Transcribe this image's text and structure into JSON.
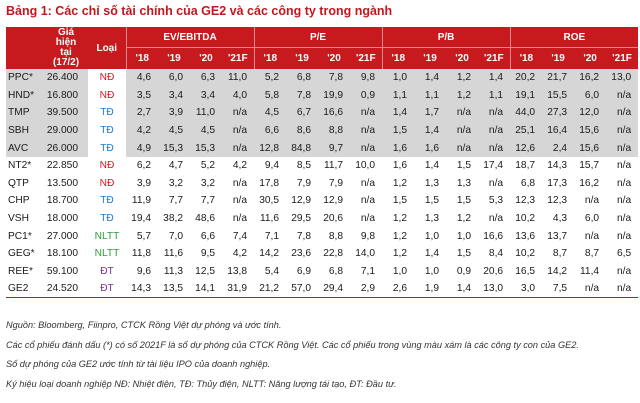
{
  "title": "Bảng 1: Các chỉ số tài chính của GE2 và các công ty trong ngành",
  "header": {
    "price_col": [
      "Giá",
      "hiện",
      "tại",
      "(17/2)"
    ],
    "type_col": "Loại",
    "groups": [
      "EV/EBITDA",
      "P/E",
      "P/B",
      "ROE"
    ],
    "years": [
      "'18",
      "'19",
      "'20",
      "'21F"
    ]
  },
  "colors": {
    "header_bg": "#c61a1f",
    "title": "#c4171d",
    "ND": "#d6191f",
    "TD": "#1f78c8",
    "NLTT": "#2e9e3a",
    "DT": "#7a2f9e",
    "grey_row": "#d6d6d6"
  },
  "rows": [
    {
      "code": "PPC*",
      "price": "26.400",
      "type": "NĐ",
      "ev": [
        "4,6",
        "6,0",
        "6,3",
        "11,0"
      ],
      "pe": [
        "5,2",
        "6,8",
        "7,8",
        "9,8"
      ],
      "pb": [
        "1,0",
        "1,4",
        "1,2",
        "1,4"
      ],
      "roe": [
        "20,2",
        "21,7",
        "16,2",
        "13,0"
      ],
      "grey": true
    },
    {
      "code": "HND*",
      "price": "16.800",
      "type": "NĐ",
      "ev": [
        "3,5",
        "3,4",
        "3,4",
        "4,0"
      ],
      "pe": [
        "5,8",
        "7,8",
        "19,9",
        "0,9"
      ],
      "pb": [
        "1,1",
        "1,1",
        "1,2",
        "1,1"
      ],
      "roe": [
        "19,1",
        "15,5",
        "6,0",
        "n/a"
      ],
      "grey": true
    },
    {
      "code": "TMP",
      "price": "39.500",
      "type": "TĐ",
      "ev": [
        "2,7",
        "3,9",
        "11,0",
        "n/a"
      ],
      "pe": [
        "4,5",
        "6,7",
        "16,6",
        "n/a"
      ],
      "pb": [
        "1,4",
        "1,7",
        "n/a",
        "n/a"
      ],
      "roe": [
        "44,0",
        "27,3",
        "12,0",
        "n/a"
      ],
      "grey": true
    },
    {
      "code": "SBH",
      "price": "29.000",
      "type": "TĐ",
      "ev": [
        "4,2",
        "4,5",
        "4,5",
        "n/a"
      ],
      "pe": [
        "6,6",
        "8,6",
        "8,8",
        "n/a"
      ],
      "pb": [
        "1,5",
        "1,4",
        "n/a",
        "n/a"
      ],
      "roe": [
        "25,1",
        "16,4",
        "15,6",
        "n/a"
      ],
      "grey": true
    },
    {
      "code": "AVC",
      "price": "26.000",
      "type": "TĐ",
      "ev": [
        "4,9",
        "15,3",
        "15,3",
        "n/a"
      ],
      "pe": [
        "12,8",
        "84,8",
        "9,7",
        "n/a"
      ],
      "pb": [
        "1,6",
        "1,6",
        "n/a",
        "n/a"
      ],
      "roe": [
        "12,6",
        "2,4",
        "15,6",
        "n/a"
      ],
      "grey": true
    },
    {
      "code": "NT2*",
      "price": "22.850",
      "type": "NĐ",
      "ev": [
        "6,2",
        "4,7",
        "5,2",
        "4,2"
      ],
      "pe": [
        "9,4",
        "8,5",
        "11,7",
        "10,0"
      ],
      "pb": [
        "1,6",
        "1,4",
        "1,5",
        "17,4"
      ],
      "roe": [
        "18,7",
        "14,3",
        "15,7",
        "n/a"
      ],
      "grey": false
    },
    {
      "code": "QTP",
      "price": "13.500",
      "type": "NĐ",
      "ev": [
        "3,9",
        "3,2",
        "3,2",
        "n/a"
      ],
      "pe": [
        "17,8",
        "7,9",
        "7,9",
        "n/a"
      ],
      "pb": [
        "1,2",
        "1,3",
        "1,3",
        "n/a"
      ],
      "roe": [
        "6,8",
        "17,3",
        "16,2",
        "n/a"
      ],
      "grey": false
    },
    {
      "code": "CHP",
      "price": "18.700",
      "type": "TĐ",
      "ev": [
        "11,9",
        "7,7",
        "7,7",
        "n/a"
      ],
      "pe": [
        "30,5",
        "12,9",
        "12,9",
        "n/a"
      ],
      "pb": [
        "1,5",
        "1,5",
        "1,5",
        "5,3"
      ],
      "roe": [
        "12,3",
        "12,3",
        "n/a",
        "n/a"
      ],
      "grey": false
    },
    {
      "code": "VSH",
      "price": "18.000",
      "type": "TĐ",
      "ev": [
        "19,4",
        "38,2",
        "48,6",
        "n/a"
      ],
      "pe": [
        "11,6",
        "29,5",
        "20,6",
        "n/a"
      ],
      "pb": [
        "1,2",
        "1,3",
        "1,2",
        "n/a"
      ],
      "roe": [
        "10,2",
        "4,3",
        "6,0",
        "n/a"
      ],
      "grey": false
    },
    {
      "code": "PC1*",
      "price": "27.000",
      "type": "NLTT",
      "ev": [
        "5,7",
        "7,0",
        "6,6",
        "7,4"
      ],
      "pe": [
        "7,1",
        "7,8",
        "8,8",
        "9,8"
      ],
      "pb": [
        "1,2",
        "1,0",
        "1,0",
        "16,6"
      ],
      "roe": [
        "13,6",
        "13,7",
        "n/a",
        "n/a"
      ],
      "grey": false
    },
    {
      "code": "GEG*",
      "price": "18.100",
      "type": "NLTT",
      "ev": [
        "11,8",
        "11,6",
        "9,5",
        "4,2"
      ],
      "pe": [
        "14,2",
        "23,6",
        "22,8",
        "14,0"
      ],
      "pb": [
        "1,2",
        "1,4",
        "1,5",
        "8,4"
      ],
      "roe": [
        "10,2",
        "8,7",
        "8,7",
        "6,5"
      ],
      "grey": false
    },
    {
      "code": "REE*",
      "price": "59.100",
      "type": "ĐT",
      "ev": [
        "9,6",
        "11,3",
        "12,5",
        "13,8"
      ],
      "pe": [
        "5,4",
        "6,9",
        "6,8",
        "7,1"
      ],
      "pb": [
        "1,0",
        "1,0",
        "0,9",
        "20,6"
      ],
      "roe": [
        "16,5",
        "14,2",
        "11,4",
        "n/a"
      ],
      "grey": false
    },
    {
      "code": "GE2",
      "price": "24.520",
      "type": "ĐT",
      "ev": [
        "14,3",
        "13,5",
        "14,1",
        "31,9"
      ],
      "pe": [
        "21,2",
        "57,0",
        "29,4",
        "2,9"
      ],
      "pb": [
        "2,6",
        "1,9",
        "1,4",
        "13,0"
      ],
      "roe": [
        "3,0",
        "7,5",
        "n/a",
        "n/a"
      ],
      "grey": false
    }
  ],
  "notes": [
    "Nguồn: Bloomberg, Fiinpro, CTCK Rồng Việt dự phóng và ước tính.",
    "Các cổ phiếu đánh dấu (*) có số 2021F là số dự phóng của CTCK Rồng Việt. Các cổ phiếu trong vùng màu xám là các công ty con của GE2.",
    "Số dự phóng của GE2 ước tính từ tài liệu IPO của doanh nghiệp.",
    "Ký hiệu loại doanh nghiệp NĐ: Nhiệt điện, TĐ: Thủy điện, NLTT: Năng lượng tái tạo, ĐT: Đầu tư."
  ]
}
